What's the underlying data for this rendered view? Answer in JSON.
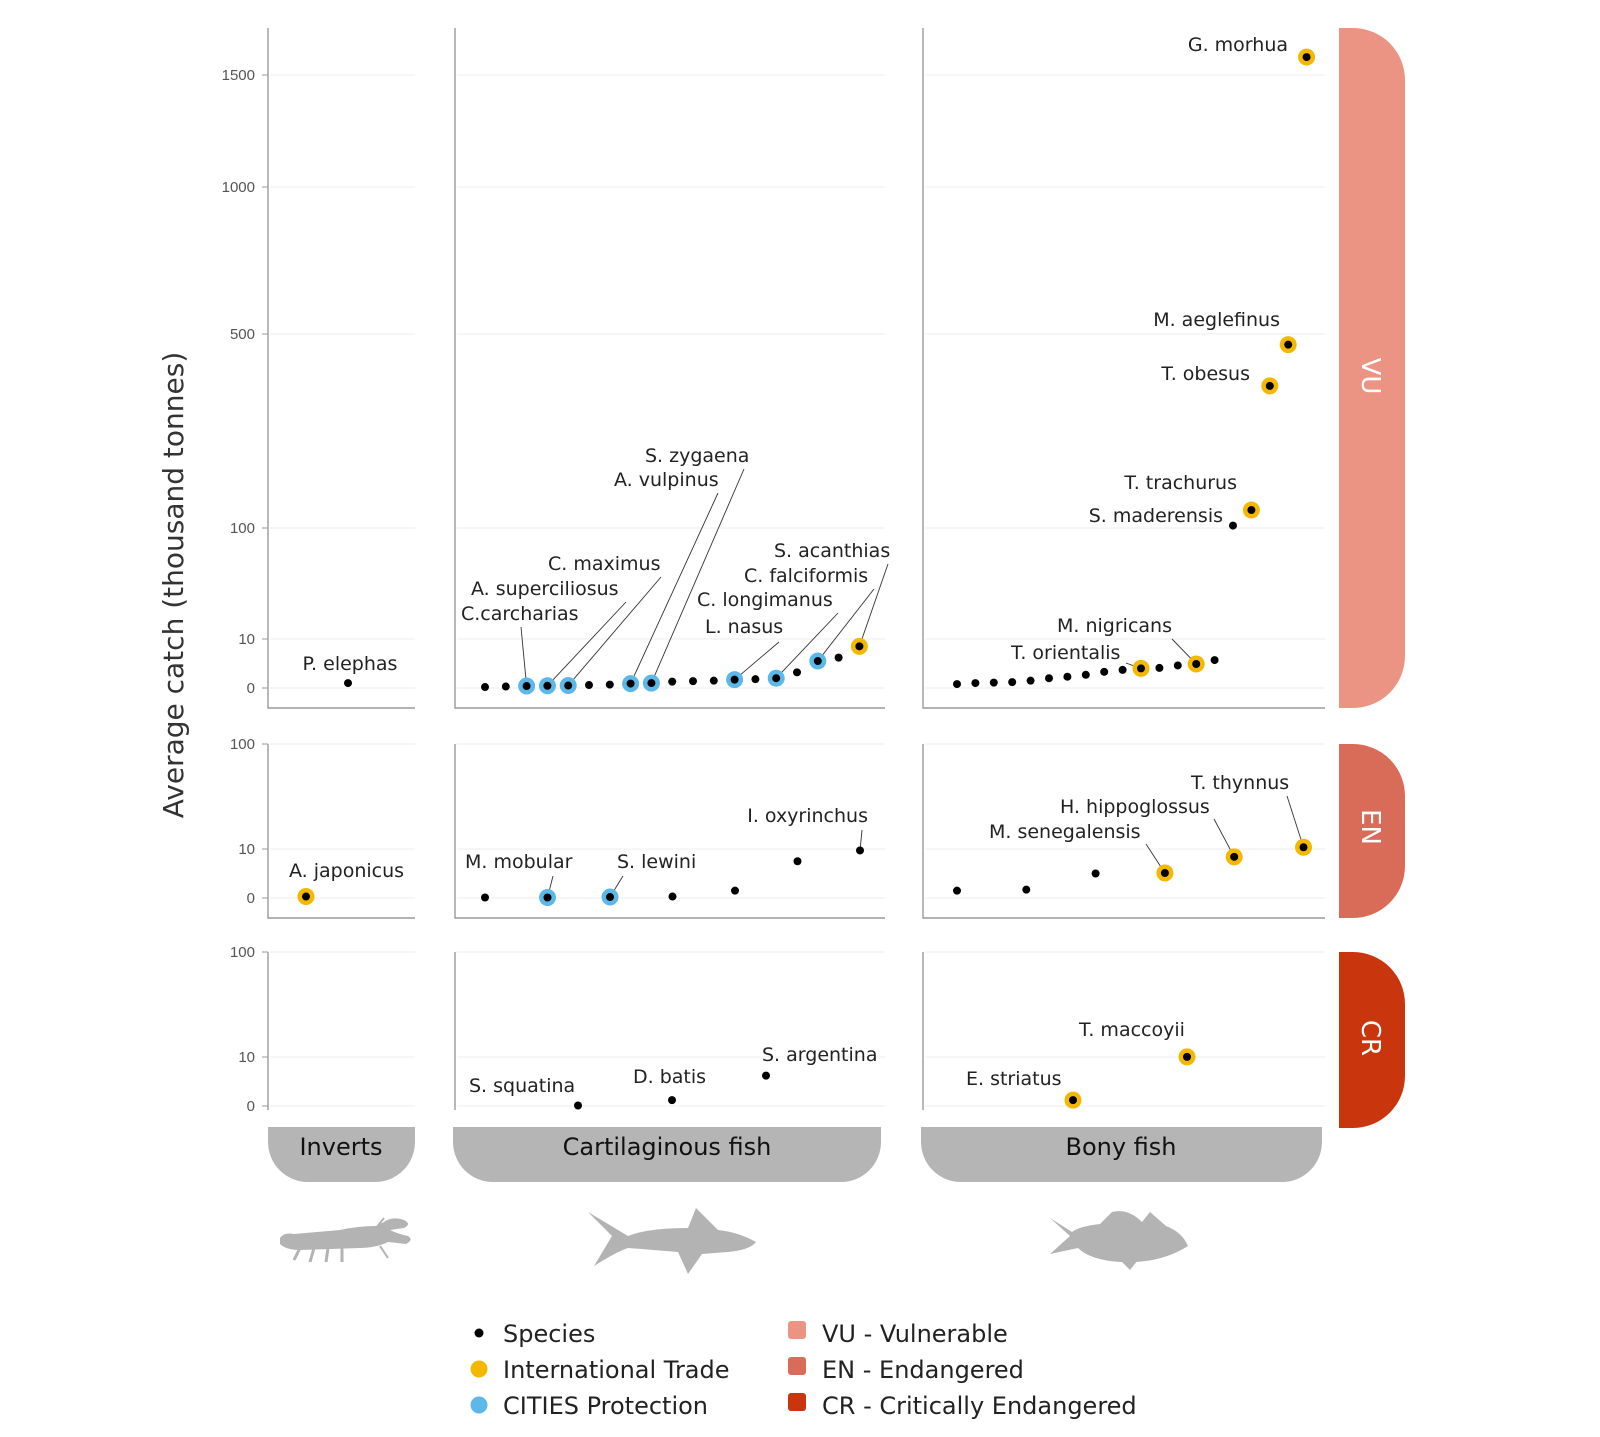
{
  "ylabel": "Average catch (thousand tonnes)",
  "colors": {
    "species": "#000000",
    "trade": "#F5B800",
    "cites": "#5BB8E8",
    "VU": "#EC9484",
    "EN": "#D96B59",
    "CR": "#C9360E",
    "category_band": "#B5B5B5"
  },
  "categories": {
    "inverts": "Inverts",
    "cartilaginous": "Cartilaginous fish",
    "bony": "Bony fish"
  },
  "icons": {
    "inverts": "lobster-icon",
    "cartilaginous": "shark-icon",
    "bony": "fish-icon"
  },
  "statuses": {
    "VU": "VU",
    "EN": "EN",
    "CR": "CR"
  },
  "legend": {
    "species": "Species",
    "trade": "International Trade",
    "cites": "CITIES Protection",
    "vu": "VU - Vulnerable",
    "en": "EN - Endangered",
    "cr": "CR - Critically Endangered"
  },
  "chart_data": {
    "type": "scatter",
    "ylabel": "Average catch (thousand tonnes)",
    "panels": [
      {
        "id": "VU",
        "yticks": [
          0,
          10,
          100,
          500,
          1000,
          1500
        ],
        "ytick_labels": [
          "0",
          "10",
          "100",
          "500",
          "1000",
          "1500"
        ],
        "groups": {
          "inverts": [
            {
              "rank": 1,
              "y": 1,
              "kind": "species",
              "label": "P. elephas"
            }
          ],
          "cartilaginous": [
            {
              "rank": 1,
              "y": 0.2,
              "kind": "species"
            },
            {
              "rank": 2,
              "y": 0.3,
              "kind": "species"
            },
            {
              "rank": 3,
              "y": 0.4,
              "kind": "cites",
              "label": "C.carcharias"
            },
            {
              "rank": 4,
              "y": 0.45,
              "kind": "cites",
              "label": "A. superciliosus"
            },
            {
              "rank": 5,
              "y": 0.5,
              "kind": "cites",
              "label": "C. maximus"
            },
            {
              "rank": 6,
              "y": 0.6,
              "kind": "species"
            },
            {
              "rank": 7,
              "y": 0.7,
              "kind": "species"
            },
            {
              "rank": 8,
              "y": 0.9,
              "kind": "cites",
              "label": "A. vulpinus"
            },
            {
              "rank": 9,
              "y": 1.0,
              "kind": "cites",
              "label": "S. zygaena"
            },
            {
              "rank": 10,
              "y": 1.3,
              "kind": "species"
            },
            {
              "rank": 11,
              "y": 1.4,
              "kind": "species"
            },
            {
              "rank": 12,
              "y": 1.5,
              "kind": "species"
            },
            {
              "rank": 13,
              "y": 1.7,
              "kind": "cites",
              "label": "L. nasus"
            },
            {
              "rank": 14,
              "y": 1.8,
              "kind": "species"
            },
            {
              "rank": 15,
              "y": 2.0,
              "kind": "cites",
              "label": "C. longimanus"
            },
            {
              "rank": 16,
              "y": 3.2,
              "kind": "species"
            },
            {
              "rank": 17,
              "y": 5.5,
              "kind": "cites",
              "label": "C. falciformis"
            },
            {
              "rank": 18,
              "y": 6.2,
              "kind": "species"
            },
            {
              "rank": 19,
              "y": 8.5,
              "kind": "trade",
              "label": "S. acanthias"
            }
          ],
          "bony": [
            {
              "rank": 1,
              "y": 0.8,
              "kind": "species"
            },
            {
              "rank": 2,
              "y": 1.0,
              "kind": "species"
            },
            {
              "rank": 3,
              "y": 1.1,
              "kind": "species"
            },
            {
              "rank": 4,
              "y": 1.2,
              "kind": "species"
            },
            {
              "rank": 5,
              "y": 1.5,
              "kind": "species"
            },
            {
              "rank": 6,
              "y": 2.0,
              "kind": "species"
            },
            {
              "rank": 7,
              "y": 2.3,
              "kind": "species"
            },
            {
              "rank": 8,
              "y": 2.7,
              "kind": "species"
            },
            {
              "rank": 9,
              "y": 3.3,
              "kind": "species"
            },
            {
              "rank": 10,
              "y": 3.7,
              "kind": "species"
            },
            {
              "rank": 11,
              "y": 4.0,
              "kind": "trade",
              "label": "T. orientalis"
            },
            {
              "rank": 12,
              "y": 4.1,
              "kind": "species"
            },
            {
              "rank": 13,
              "y": 4.6,
              "kind": "species"
            },
            {
              "rank": 14,
              "y": 4.9,
              "kind": "trade",
              "label": "M. nigricans"
            },
            {
              "rank": 15,
              "y": 5.7,
              "kind": "species"
            },
            {
              "rank": 16,
              "y": 105,
              "kind": "species",
              "label": "S. maderensis"
            },
            {
              "rank": 17,
              "y": 137,
              "kind": "trade",
              "label": "T. trachurus"
            },
            {
              "rank": 18,
              "y": 393,
              "kind": "trade",
              "label": "T. obesus"
            },
            {
              "rank": 19,
              "y": 478,
              "kind": "trade",
              "label": "M. aeglefinus"
            },
            {
              "rank": 20,
              "y": 1580,
              "kind": "trade",
              "label": "G. morhua"
            }
          ]
        }
      },
      {
        "id": "EN",
        "yticks": [
          0,
          10,
          100
        ],
        "ytick_labels": [
          "0",
          "10",
          "100"
        ],
        "groups": {
          "inverts": [
            {
              "rank": 1,
              "y": 0.3,
              "kind": "trade",
              "label": "A. japonicus"
            }
          ],
          "cartilaginous": [
            {
              "rank": 1,
              "y": 0.1,
              "kind": "species"
            },
            {
              "rank": 2,
              "y": 0.1,
              "kind": "cites",
              "label": "M. mobular"
            },
            {
              "rank": 3,
              "y": 0.2,
              "kind": "cites",
              "label": "S. lewini"
            },
            {
              "rank": 4,
              "y": 0.3,
              "kind": "species"
            },
            {
              "rank": 5,
              "y": 1.5,
              "kind": "species"
            },
            {
              "rank": 6,
              "y": 7.5,
              "kind": "species"
            },
            {
              "rank": 7,
              "y": 9.7,
              "kind": "species",
              "label": "I. oxyrinchus"
            }
          ],
          "bony": [
            {
              "rank": 1,
              "y": 1.5,
              "kind": "species"
            },
            {
              "rank": 2,
              "y": 1.7,
              "kind": "species"
            },
            {
              "rank": 3,
              "y": 5.0,
              "kind": "species"
            },
            {
              "rank": 4,
              "y": 5.1,
              "kind": "trade",
              "label": "M. senegalensis"
            },
            {
              "rank": 5,
              "y": 8.4,
              "kind": "trade",
              "label": "H. hippoglossus"
            },
            {
              "rank": 6,
              "y": 11.5,
              "kind": "trade",
              "label": "T. thynnus"
            }
          ]
        }
      },
      {
        "id": "CR",
        "yticks": [
          0,
          10,
          100
        ],
        "ytick_labels": [
          "0",
          "10",
          "100"
        ],
        "groups": {
          "inverts": [],
          "cartilaginous": [
            {
              "rank": 1,
              "y": 0.1,
              "kind": "species",
              "label": "S. squatina"
            },
            {
              "rank": 2,
              "y": 1.2,
              "kind": "species",
              "label": "D. batis"
            },
            {
              "rank": 3,
              "y": 6.2,
              "kind": "species",
              "label": "S. argentina"
            }
          ],
          "bony": [
            {
              "rank": 1,
              "y": 1.2,
              "kind": "trade",
              "label": "E. striatus"
            },
            {
              "rank": 2,
              "y": 10.1,
              "kind": "trade",
              "label": "T. maccoyii"
            }
          ]
        }
      }
    ]
  }
}
